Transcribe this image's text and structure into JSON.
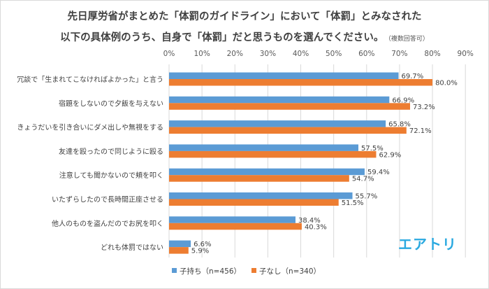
{
  "title": {
    "line1": "先日厚労省がまとめた「体罰のガイドライン」において「体罰」とみなされた",
    "line2": "以下の具体例のうち、自身で「体罰」だと思うものを選んでください。",
    "note": "（複数回答可）"
  },
  "brand": "エアトリ",
  "colors": {
    "series1": "#5b9bd5",
    "series2": "#ed7d31",
    "grid": "#d9d9d9",
    "text": "#404040"
  },
  "chart_data": {
    "type": "bar",
    "orientation": "horizontal",
    "categories": [
      "冗談で「生まれてこなければよかった」と言う",
      "宿題をしないので夕飯を与えない",
      "きょうだいを引き合いにダメ出しや無視をする",
      "友達を殴ったので同じように殴る",
      "注意しても聞かないので頬を叩く",
      "いたずらしたので長時間正座させる",
      "他人のものを盗んだのでお尻を叩く",
      "どれも体罰ではない"
    ],
    "series": [
      {
        "name": "子持ち（n=456）",
        "values": [
          69.7,
          66.9,
          65.8,
          57.5,
          59.4,
          55.7,
          38.4,
          6.6
        ]
      },
      {
        "name": "子なし（n=340）",
        "values": [
          80.0,
          73.2,
          72.1,
          62.9,
          54.7,
          51.5,
          40.3,
          5.9
        ]
      }
    ],
    "xlim": [
      0,
      90
    ],
    "xticks": [
      "0%",
      "10%",
      "20%",
      "30%",
      "40%",
      "50%",
      "60%",
      "70%",
      "80%",
      "90%"
    ],
    "value_labels": [
      [
        "69.7%",
        "66.9%",
        "65.8%",
        "57.5%",
        "59.4%",
        "55.7%",
        "38.4%",
        "6.6%"
      ],
      [
        "80.0%",
        "73.2%",
        "72.1%",
        "62.9%",
        "54.7%",
        "51.5%",
        "40.3%",
        "5.9%"
      ]
    ],
    "grid": true,
    "legend": "bottom"
  }
}
